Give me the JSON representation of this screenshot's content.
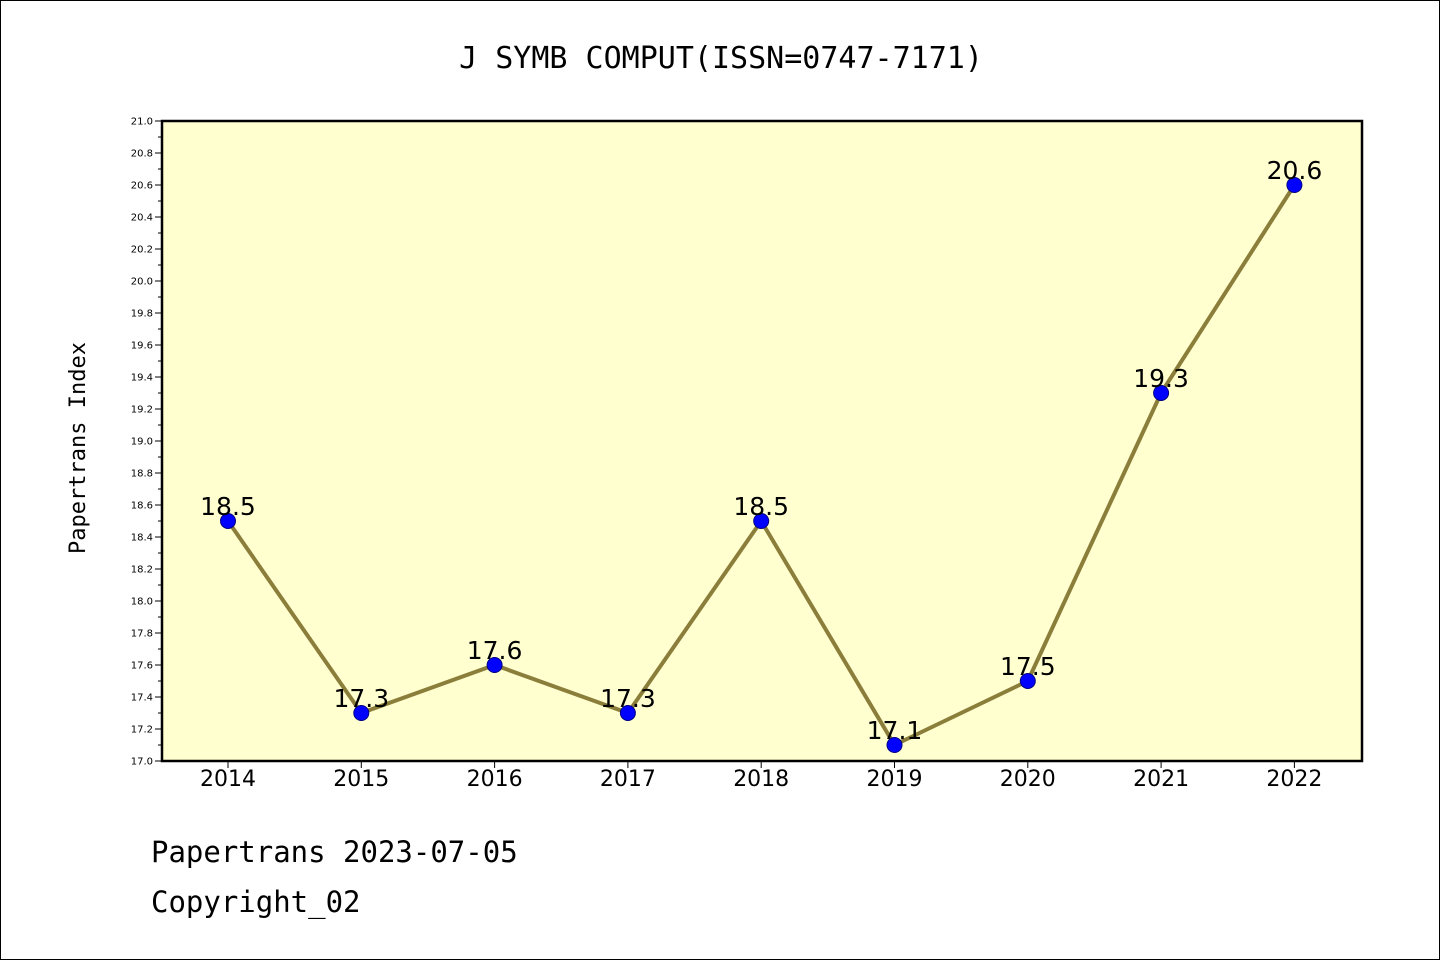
{
  "colors": {
    "plot_background": "#ffffd0",
    "line": "#8b7d3a",
    "marker_fill": "#0000ff",
    "marker_edge": "#000080"
  },
  "chart_data": {
    "type": "line",
    "title": "J SYMB COMPUT(ISSN=0747-7171)",
    "xlabel": "",
    "ylabel": "Papertrans Index",
    "categories": [
      "2014",
      "2015",
      "2016",
      "2017",
      "2018",
      "2019",
      "2020",
      "2021",
      "2022"
    ],
    "series": [
      {
        "values": [
          18.5,
          17.3,
          17.6,
          17.3,
          18.5,
          17.1,
          17.5,
          19.3,
          20.6
        ],
        "labels": [
          "18.5",
          "17.3",
          "17.6",
          "17.3",
          "18.5",
          "17.1",
          "17.5",
          "19.3",
          "20.6"
        ]
      }
    ],
    "ylim": [
      17.0,
      21.0
    ],
    "ytick_step": 0.2,
    "yticks": [
      "17.0",
      "17.2",
      "17.4",
      "17.6",
      "17.8",
      "18.0",
      "18.2",
      "18.4",
      "18.6",
      "18.8",
      "19.0",
      "19.2",
      "19.4",
      "19.6",
      "19.8",
      "20.0",
      "20.2",
      "20.4",
      "20.6",
      "20.8",
      "21.0"
    ],
    "grid": false,
    "legend": "none"
  },
  "footer": {
    "line1": "Papertrans 2023-07-05",
    "line2": "Copyright_02"
  }
}
